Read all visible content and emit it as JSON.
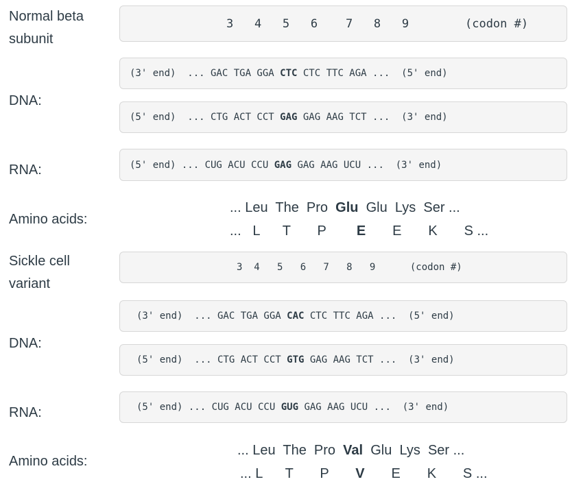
{
  "normal": {
    "label": "Normal beta\nsubunit",
    "codons": "3   4   5   6    7   8   9        (codon #)",
    "dna_label": "DNA:",
    "dna1": {
      "pre": "(3' end)  ... GAC TGA GGA ",
      "bold": "CTC",
      "post": " CTC TTC AGA ...  (5' end)"
    },
    "dna2": {
      "pre": "(5' end)  ... CTG ACT CCT ",
      "bold": "GAG",
      "post": " GAG AAG TCT ...  (3' end)"
    },
    "rna_label": "RNA:",
    "rna": {
      "pre": "(5' end) ... CUG ACU CCU ",
      "bold": "GAG",
      "post": " GAG AAG UCU ...  (3' end)"
    },
    "aa_label": "Amino acids:",
    "aa3": {
      "pre": "... Leu  The  Pro  ",
      "bold": "Glu",
      "post": "  Glu  Lys  Ser ..."
    },
    "aa1": {
      "pre": "...   L      T       P        ",
      "bold": "E",
      "post": "       E       K       S ..."
    }
  },
  "sickle": {
    "label": "Sickle cell\nvariant",
    "codons": "3  4   5   6   7   8   9      (codon #)",
    "dna_label": "DNA:",
    "dna1": {
      "pre": "(3' end)  ... GAC TGA GGA ",
      "bold": "CAC",
      "post": " CTC TTC AGA ...  (5' end)"
    },
    "dna2": {
      "pre": "(5' end)  ... CTG ACT CCT ",
      "bold": "GTG",
      "post": " GAG AAG TCT ...  (3' end)"
    },
    "rna_label": "RNA:",
    "rna": {
      "pre": "(5' end) ... CUG ACU CCU ",
      "bold": "GUG",
      "post": " GAG AAG UCU ...  (3' end)"
    },
    "aa_label": "Amino acids:",
    "aa3": {
      "pre": "... Leu  The  Pro  ",
      "bold": "Val",
      "post": "  Glu  Lys  Ser ..."
    },
    "aa1": {
      "pre": "... L      T       P       ",
      "bold": "V",
      "post": "       E       K       S ..."
    }
  }
}
